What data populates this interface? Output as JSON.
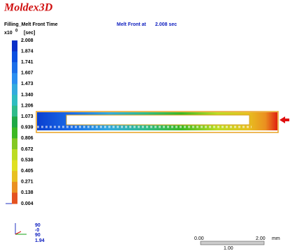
{
  "header": {
    "brand": "Moldex3D",
    "result_name": "Filling_Melt Front Time",
    "multiplier_base": "x10",
    "multiplier_exp": "0",
    "unit": "[sec]",
    "status_label": "Melt Front at",
    "status_value": "2.008 sec"
  },
  "legend": {
    "labels": [
      "2.008",
      "1.874",
      "1.741",
      "1.607",
      "1.473",
      "1.340",
      "1.206",
      "1.073",
      "0.939",
      "0.806",
      "0.672",
      "0.538",
      "0.405",
      "0.271",
      "0.138",
      "0.004"
    ],
    "colors": [
      "#0a2fc8",
      "#0b4fe0",
      "#1b6ee8",
      "#2a8ef0",
      "#33aadd",
      "#2fbcc0",
      "#2fbb8a",
      "#1fa846",
      "#3cb822",
      "#84c822",
      "#bcdc22",
      "#e0e020",
      "#e8c020",
      "#ea9020",
      "#e45220"
    ]
  },
  "triad": {
    "labels": [
      "90",
      "-0",
      "90",
      "1.94"
    ]
  },
  "scale_bar": {
    "start": "0.00",
    "end": "2.00",
    "unit": "mm",
    "middle": "1.00"
  }
}
